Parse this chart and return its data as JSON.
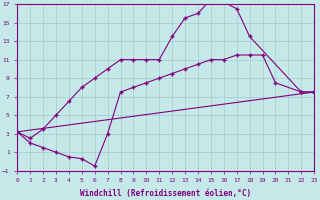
{
  "line1_x": [
    0,
    1,
    2,
    3,
    4,
    5,
    6,
    7,
    8,
    9,
    10,
    11,
    12,
    13,
    14,
    15,
    16,
    17,
    18,
    22,
    23
  ],
  "line1_y": [
    3.2,
    2.5,
    3.5,
    5.0,
    6.5,
    8.0,
    9.0,
    10.0,
    11.0,
    11.0,
    11.0,
    11.0,
    13.5,
    15.5,
    16.0,
    17.5,
    17.2,
    16.5,
    13.5,
    7.5,
    7.5
  ],
  "line2_x": [
    0,
    1,
    2,
    3,
    4,
    5,
    6,
    7,
    8,
    9,
    10,
    11,
    12,
    13,
    14,
    15,
    16,
    17,
    18,
    19,
    20,
    22,
    23
  ],
  "line2_y": [
    3.2,
    2.0,
    1.5,
    1.0,
    0.5,
    0.3,
    -0.5,
    3.0,
    7.5,
    8.0,
    8.5,
    9.0,
    9.5,
    10.0,
    10.5,
    11.0,
    11.0,
    11.5,
    11.5,
    11.5,
    8.5,
    7.5,
    7.5
  ],
  "line3_x": [
    0,
    23
  ],
  "line3_y": [
    3.2,
    7.5
  ],
  "color": "#800080",
  "bg_color": "#c5e8e8",
  "grid_color": "#a0cccc",
  "xlabel": "Windchill (Refroidissement éolien,°C)",
  "xlim": [
    0,
    23
  ],
  "ylim": [
    -1,
    17
  ],
  "xticks": [
    0,
    1,
    2,
    3,
    4,
    5,
    6,
    7,
    8,
    9,
    10,
    11,
    12,
    13,
    14,
    15,
    16,
    17,
    18,
    19,
    20,
    21,
    22,
    23
  ],
  "yticks": [
    -1,
    1,
    3,
    5,
    7,
    9,
    11,
    13,
    15,
    17
  ]
}
